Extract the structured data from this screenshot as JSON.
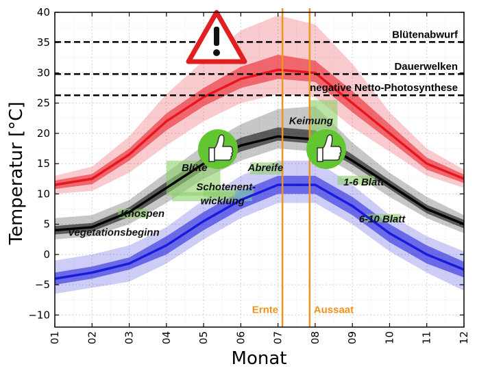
{
  "chart_data": {
    "type": "line",
    "xlabel": "Monat",
    "ylabel": "Temperatur [°C]",
    "x": [
      "01",
      "02",
      "03",
      "04",
      "05",
      "06",
      "07",
      "08",
      "09",
      "10",
      "11",
      "12"
    ],
    "ylim": [
      -12,
      40
    ],
    "yticks": [
      -10,
      -5,
      0,
      5,
      10,
      15,
      20,
      25,
      30,
      35,
      40
    ],
    "grid": true,
    "series": [
      {
        "key": "tmax",
        "color": "#e8141e",
        "values": [
          11.5,
          12.5,
          16.5,
          22.0,
          26.0,
          29.0,
          30.5,
          30.0,
          25.0,
          20.0,
          15.0,
          12.5
        ],
        "inner_lo": [
          10.8,
          11.6,
          15.5,
          20.5,
          24.5,
          27.5,
          29.0,
          28.5,
          23.5,
          18.8,
          14.0,
          11.8
        ],
        "inner_hi": [
          12.2,
          13.3,
          17.5,
          23.3,
          27.5,
          31.0,
          33.0,
          32.0,
          27.0,
          21.5,
          16.0,
          13.2
        ],
        "outer_lo": [
          10.0,
          10.5,
          13.5,
          18.0,
          22.0,
          25.0,
          26.5,
          26.0,
          21.0,
          17.0,
          13.0,
          11.0
        ],
        "outer_hi": [
          13.0,
          14.5,
          19.5,
          26.5,
          32.0,
          37.0,
          39.5,
          38.0,
          31.5,
          23.5,
          17.5,
          14.0
        ]
      },
      {
        "key": "tmean",
        "color": "#000000",
        "values": [
          4.0,
          4.5,
          7.0,
          11.0,
          15.0,
          18.0,
          19.5,
          19.0,
          15.5,
          11.5,
          7.5,
          5.0
        ],
        "inner_lo": [
          3.3,
          3.8,
          6.2,
          10.0,
          14.0,
          17.0,
          18.8,
          18.3,
          14.8,
          10.8,
          6.8,
          4.3
        ],
        "inner_hi": [
          4.7,
          5.2,
          7.8,
          12.0,
          16.0,
          19.3,
          21.0,
          20.5,
          16.5,
          12.3,
          8.2,
          5.7
        ],
        "outer_lo": [
          2.5,
          3.0,
          5.0,
          8.5,
          12.5,
          15.5,
          17.5,
          17.0,
          13.5,
          9.5,
          6.0,
          3.5
        ],
        "outer_hi": [
          6.0,
          6.5,
          9.0,
          13.5,
          18.0,
          21.5,
          24.0,
          24.5,
          18.5,
          13.5,
          9.5,
          6.5
        ]
      },
      {
        "key": "tmin",
        "color": "#1a1adc",
        "values": [
          -4.0,
          -3.0,
          -1.5,
          1.5,
          5.5,
          9.0,
          11.5,
          11.5,
          8.0,
          3.5,
          0.0,
          -2.5
        ],
        "inner_lo": [
          -5.0,
          -4.0,
          -2.5,
          0.0,
          4.0,
          7.5,
          10.0,
          10.0,
          6.5,
          2.0,
          -1.5,
          -3.8
        ],
        "inner_hi": [
          -3.0,
          -2.0,
          -0.5,
          3.0,
          7.0,
          10.5,
          13.0,
          13.0,
          9.5,
          5.0,
          1.5,
          -1.2
        ],
        "outer_lo": [
          -6.5,
          -5.5,
          -4.5,
          -1.5,
          2.5,
          6.0,
          8.5,
          8.5,
          5.0,
          0.5,
          -3.0,
          -6.0
        ],
        "outer_hi": [
          -1.0,
          0.0,
          1.5,
          4.5,
          9.0,
          13.0,
          15.5,
          15.5,
          11.5,
          6.5,
          3.0,
          0.5
        ]
      }
    ],
    "hlines": [
      {
        "y": 35.1,
        "label": "Blütenabwurf"
      },
      {
        "y": 29.8,
        "label": "Dauerwelken"
      },
      {
        "y": 26.3,
        "label": "negative Netto-Photosynthese"
      }
    ],
    "vlines": [
      {
        "x": 7.12,
        "label": "Ernte",
        "color": "#f0941c"
      },
      {
        "x": 7.85,
        "label": "Aussaat",
        "color": "#f0941c"
      }
    ],
    "stage_annotations": [
      {
        "lines": [
          "Vegetationsbeginn"
        ]
      },
      {
        "lines": [
          "Knospen"
        ]
      },
      {
        "lines": [
          "Blüte"
        ]
      },
      {
        "lines": [
          "Schotenent-",
          "wicklung"
        ]
      },
      {
        "lines": [
          "Abreife"
        ]
      },
      {
        "lines": [
          "Keimung"
        ]
      },
      {
        "lines": [
          "1-6 Blatt"
        ]
      },
      {
        "lines": [
          "6-10 Blatt"
        ]
      }
    ],
    "icons": [
      {
        "name": "warning-triangle-icon"
      },
      {
        "name": "thumbs-up-icon"
      },
      {
        "name": "thumbs-up-icon"
      }
    ]
  }
}
